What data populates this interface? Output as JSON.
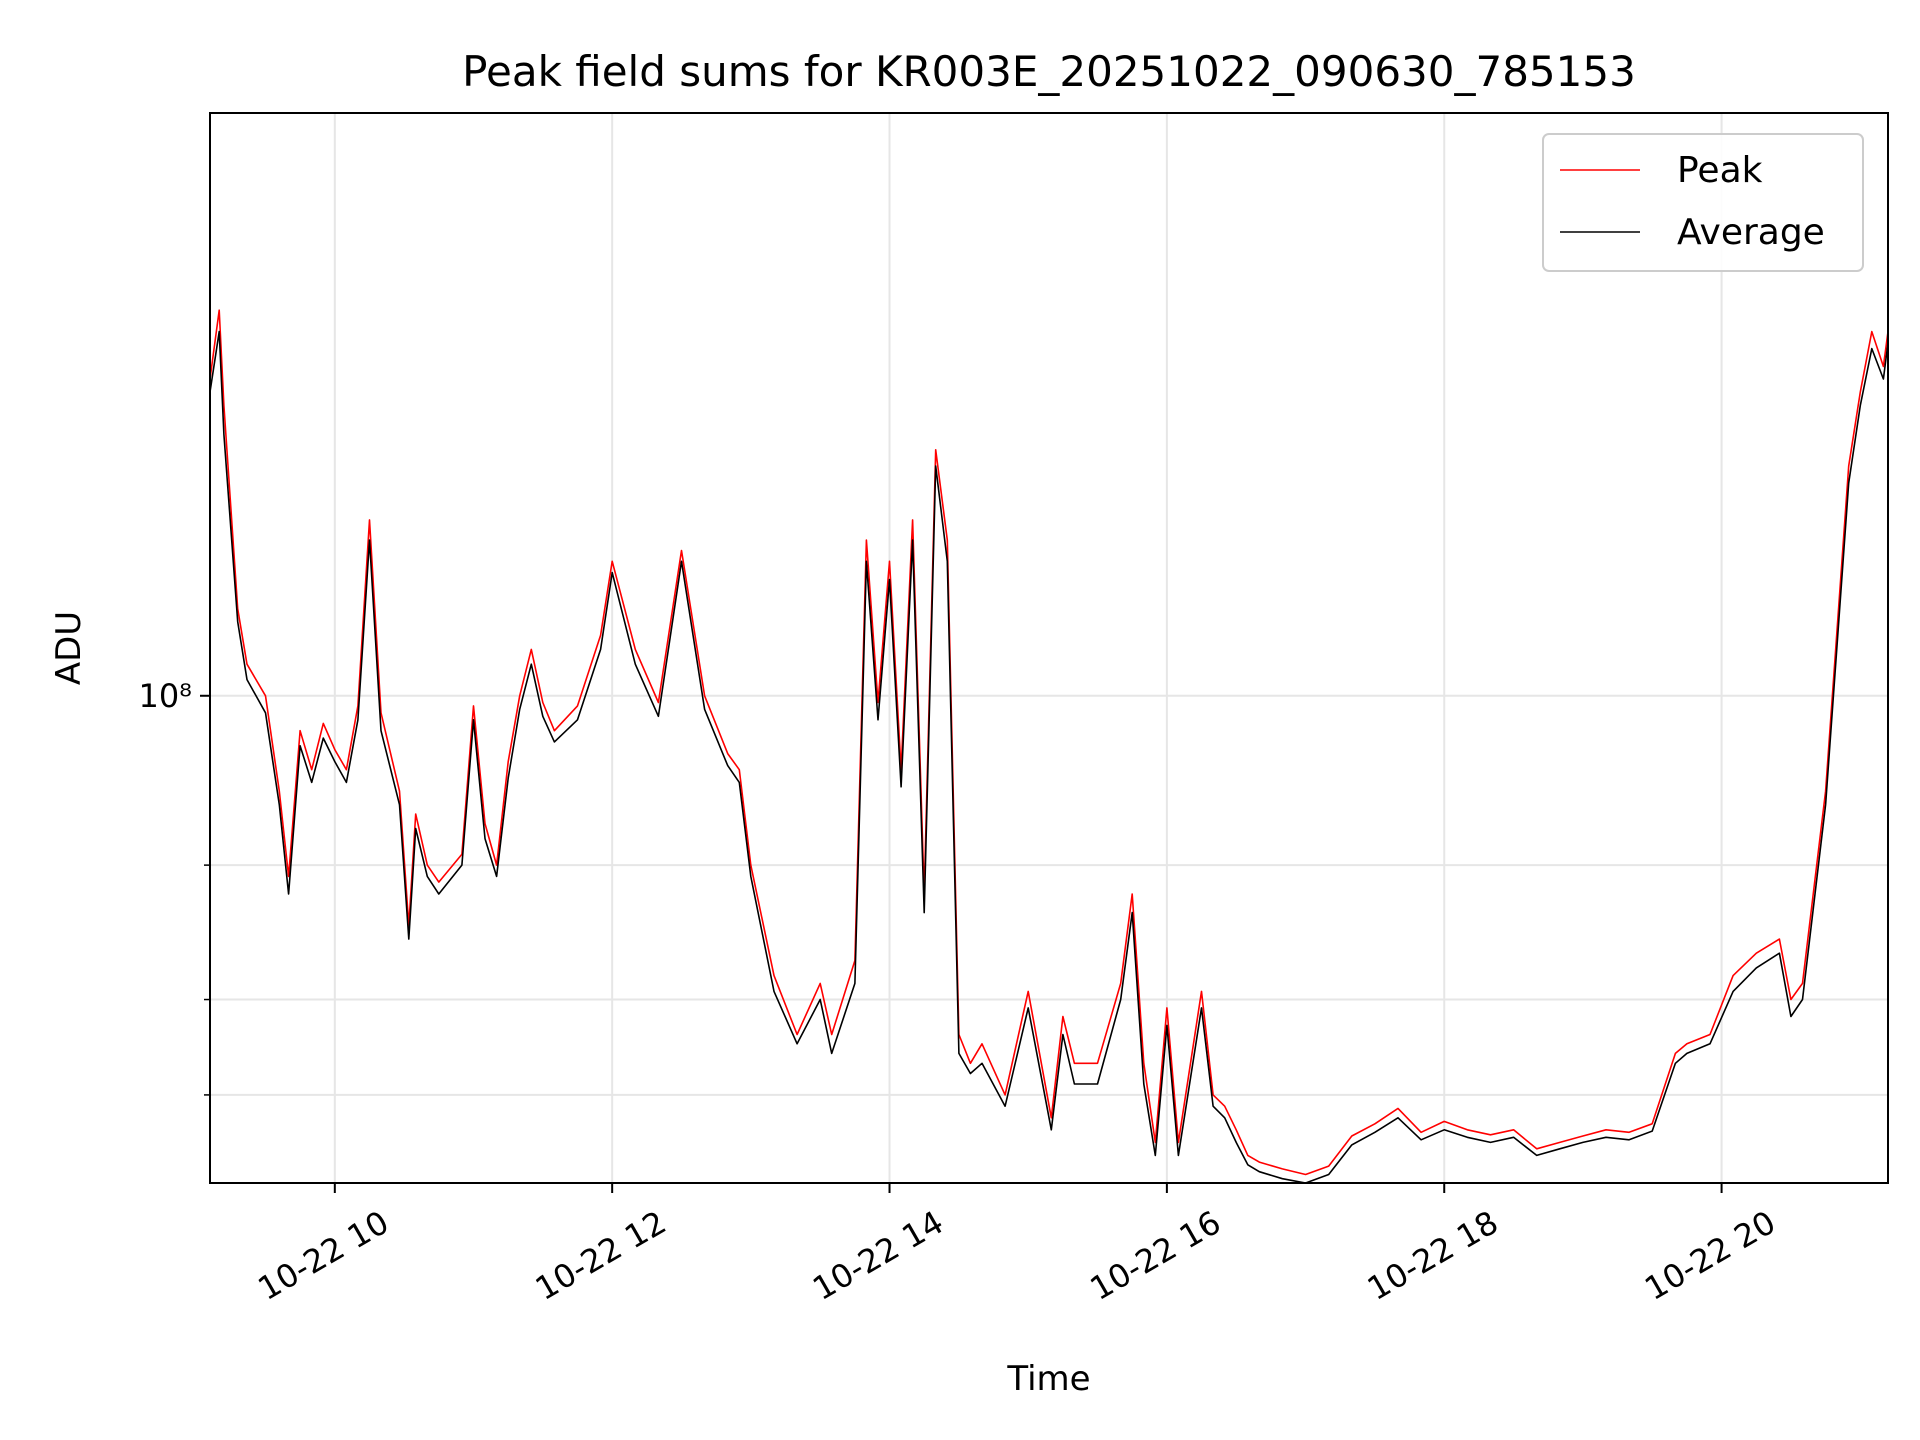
{
  "chart_data": {
    "type": "line",
    "title": "Peak field sums for KR003E_20251022_090630_785153",
    "xlabel": "Time",
    "ylabel": "ADU",
    "y_scale": "log",
    "xlim": [
      "2025-10-22 09:06",
      "2025-10-22 21:12"
    ],
    "ylim": [
      23000000,
      580000000
    ],
    "x_ticks": [
      "10-22 10",
      "10-22 12",
      "10-22 14",
      "10-22 16",
      "10-22 18",
      "10-22 20"
    ],
    "x_tick_values": [
      "2025-10-22 10:00",
      "2025-10-22 12:00",
      "2025-10-22 14:00",
      "2025-10-22 16:00",
      "2025-10-22 18:00",
      "2025-10-22 20:00"
    ],
    "y_major_tick_label": "10⁸",
    "y_major_tick_value": 100000000,
    "y_minor_tick_values": [
      30000000,
      40000000,
      60000000
    ],
    "grid": true,
    "legend_position": "top-right",
    "colors": {
      "peak": "#ff0000",
      "average": "#000000"
    },
    "x": [
      "09:06",
      "09:10",
      "09:12",
      "09:18",
      "09:22",
      "09:30",
      "09:36",
      "09:40",
      "09:45",
      "09:50",
      "09:55",
      "10:00",
      "10:05",
      "10:10",
      "10:15",
      "10:20",
      "10:28",
      "10:32",
      "10:35",
      "10:40",
      "10:45",
      "10:55",
      "11:00",
      "11:05",
      "11:10",
      "11:15",
      "11:20",
      "11:25",
      "11:30",
      "11:35",
      "11:45",
      "11:55",
      "12:00",
      "12:10",
      "12:20",
      "12:30",
      "12:40",
      "12:50",
      "12:55",
      "13:00",
      "13:10",
      "13:20",
      "13:30",
      "13:35",
      "13:45",
      "13:50",
      "13:55",
      "14:00",
      "14:05",
      "14:10",
      "14:15",
      "14:20",
      "14:25",
      "14:30",
      "14:35",
      "14:40",
      "14:50",
      "15:00",
      "15:10",
      "15:15",
      "15:20",
      "15:30",
      "15:40",
      "15:45",
      "15:50",
      "15:55",
      "16:00",
      "16:05",
      "16:15",
      "16:20",
      "16:25",
      "16:30",
      "16:35",
      "16:40",
      "16:50",
      "17:00",
      "17:10",
      "17:20",
      "17:30",
      "17:40",
      "17:50",
      "18:00",
      "18:10",
      "18:20",
      "18:30",
      "18:40",
      "18:50",
      "19:00",
      "19:10",
      "19:20",
      "19:30",
      "19:40",
      "19:45",
      "19:55",
      "20:05",
      "20:15",
      "20:25",
      "20:30",
      "20:35",
      "20:45",
      "20:55",
      "21:00",
      "21:05",
      "21:10",
      "21:12"
    ],
    "series": [
      {
        "name": "Peak",
        "values": [
          260000000,
          320000000,
          240000000,
          130000000,
          110000000,
          100000000,
          75000000,
          58000000,
          90000000,
          80000000,
          92000000,
          85000000,
          80000000,
          97000000,
          170000000,
          95000000,
          75000000,
          50000000,
          70000000,
          60000000,
          57000000,
          62000000,
          97000000,
          68000000,
          60000000,
          82000000,
          100000000,
          115000000,
          98000000,
          90000000,
          97000000,
          120000000,
          150000000,
          115000000,
          98000000,
          155000000,
          100000000,
          84000000,
          80000000,
          60000000,
          43000000,
          36000000,
          42000000,
          36000000,
          45000000,
          160000000,
          98000000,
          150000000,
          80000000,
          170000000,
          55000000,
          210000000,
          160000000,
          36000000,
          33000000,
          35000000,
          30000000,
          41000000,
          28000000,
          38000000,
          33000000,
          33000000,
          42000000,
          55000000,
          33000000,
          26000000,
          39000000,
          26000000,
          41000000,
          30000000,
          29000000,
          27000000,
          25000000,
          24500000,
          24000000,
          23600000,
          24200000,
          26500000,
          27500000,
          28800000,
          26800000,
          27700000,
          27000000,
          26600000,
          27000000,
          25500000,
          26000000,
          26500000,
          27000000,
          26800000,
          27500000,
          34000000,
          35000000,
          36000000,
          43000000,
          46000000,
          48000000,
          40000000,
          42000000,
          75000000,
          200000000,
          250000000,
          300000000,
          270000000,
          300000000
        ]
      },
      {
        "name": "Average",
        "values": [
          250000000,
          300000000,
          220000000,
          125000000,
          105000000,
          95000000,
          72000000,
          55000000,
          86000000,
          77000000,
          88000000,
          82000000,
          77000000,
          93000000,
          160000000,
          90000000,
          72000000,
          48000000,
          67000000,
          58000000,
          55000000,
          60000000,
          93000000,
          65000000,
          58000000,
          78000000,
          96000000,
          110000000,
          94000000,
          87000000,
          93000000,
          115000000,
          145000000,
          110000000,
          94000000,
          150000000,
          96000000,
          81000000,
          77000000,
          58000000,
          41000000,
          35000000,
          40000000,
          34000000,
          42000000,
          150000000,
          93000000,
          142000000,
          76000000,
          160000000,
          52000000,
          200000000,
          150000000,
          34000000,
          32000000,
          33000000,
          29000000,
          39000000,
          27000000,
          36000000,
          31000000,
          31000000,
          40000000,
          52000000,
          31000000,
          25000000,
          37000000,
          25000000,
          39000000,
          29000000,
          28000000,
          26000000,
          24300000,
          23800000,
          23300000,
          23000000,
          23600000,
          25800000,
          26800000,
          28000000,
          26200000,
          27000000,
          26400000,
          26000000,
          26400000,
          25000000,
          25500000,
          26000000,
          26400000,
          26200000,
          26900000,
          33000000,
          34000000,
          35000000,
          41000000,
          44000000,
          46000000,
          38000000,
          40000000,
          72000000,
          190000000,
          240000000,
          285000000,
          260000000,
          290000000
        ]
      }
    ]
  }
}
